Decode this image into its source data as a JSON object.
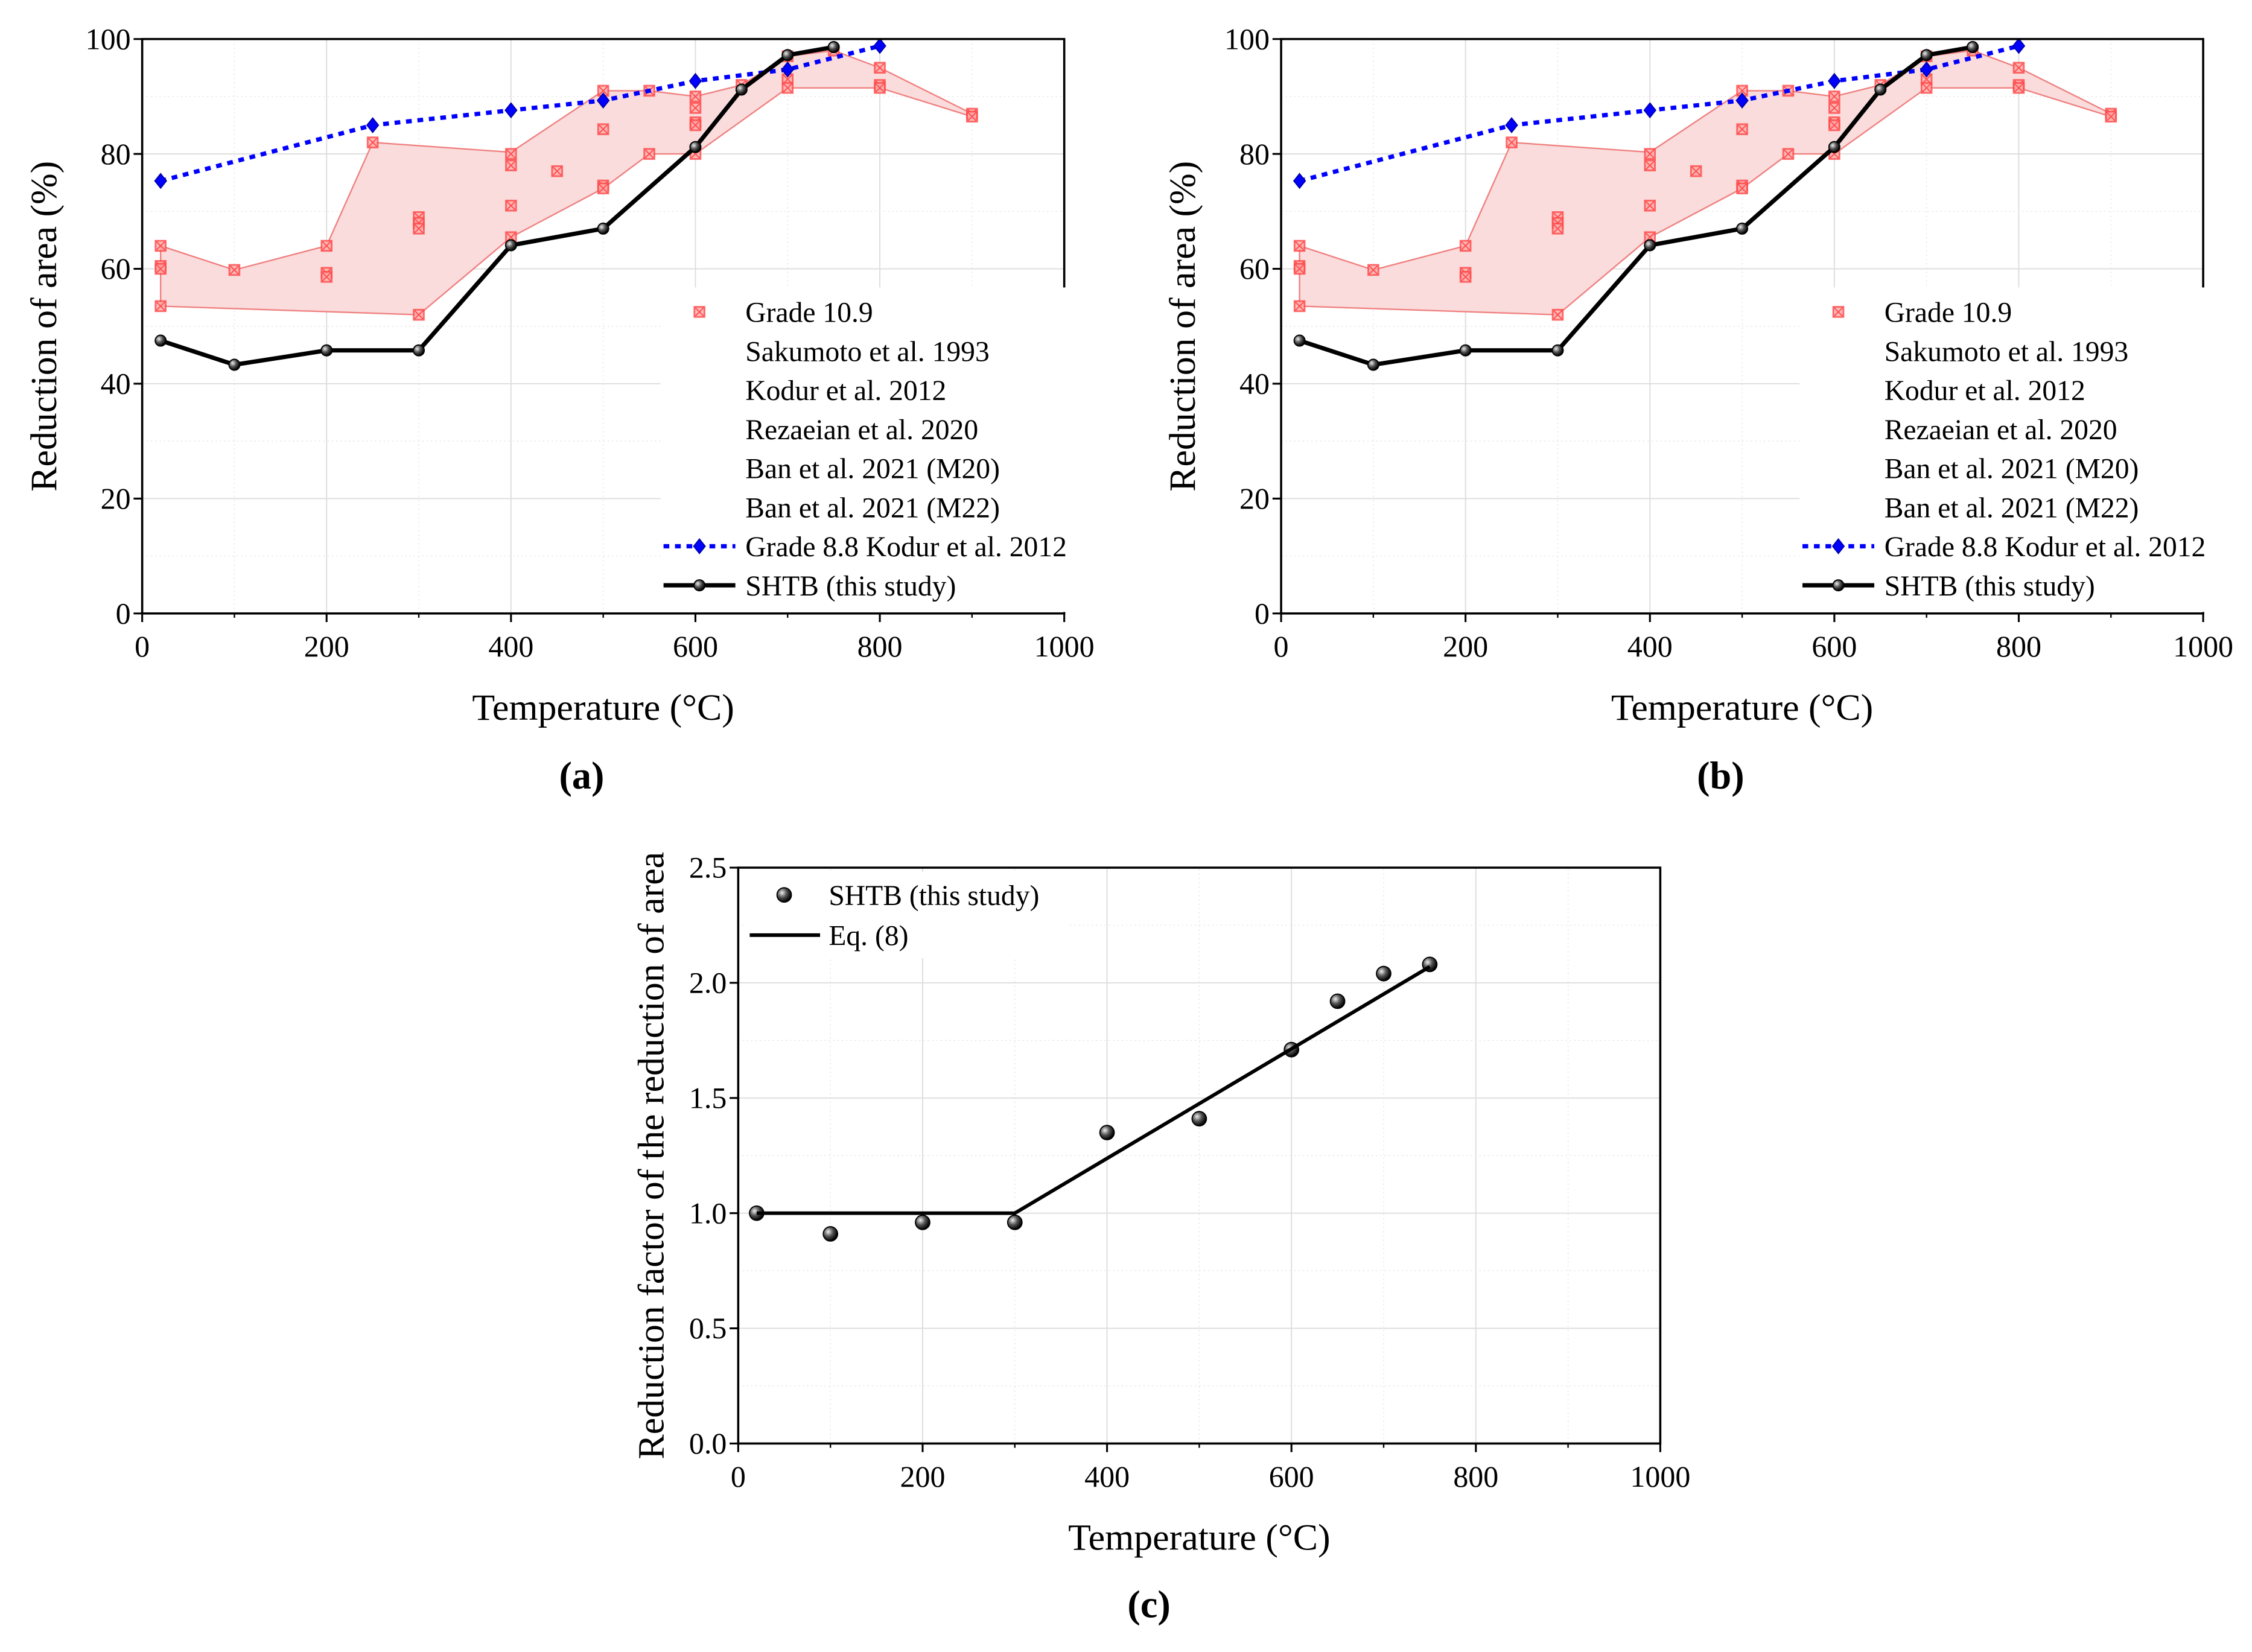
{
  "panel_labels": [
    "(a)",
    "(b)",
    "(c)"
  ],
  "colors": {
    "band_fill": "#fadcdc",
    "band_line": "#f08080",
    "grade109": "#ff4d4d",
    "grade88": "#0000ff",
    "shtb": "#000000"
  },
  "chart_data": [
    {
      "id": "a",
      "type": "line",
      "xlabel": "Temperature (°C)",
      "ylabel": "Reduction of area (%)",
      "xlim": [
        0,
        1000
      ],
      "ylim": [
        0,
        100
      ],
      "xticks": [
        0,
        200,
        400,
        600,
        800,
        1000
      ],
      "yticks": [
        0,
        20,
        40,
        60,
        80,
        100
      ],
      "grid": true,
      "legend_position": "bottom-right",
      "legend": [
        "Grade 10.9",
        "Sakumoto et al. 1993",
        "Kodur et al. 2012",
        "Rezaeian et al. 2020",
        "Ban et al. 2021 (M20)",
        "Ban et al. 2021 (M22)",
        "Grade 8.8 Kodur et al. 2012",
        "SHTB (this study)"
      ],
      "band_upper": {
        "x": [
          20,
          100,
          200,
          250,
          400,
          500,
          550,
          600,
          650,
          700,
          750,
          800,
          900
        ],
        "y": [
          64,
          59.8,
          64,
          82,
          80.3,
          91,
          91,
          90,
          92,
          97,
          98,
          95,
          87
        ]
      },
      "band_lower": {
        "x": [
          20,
          300,
          400,
          500,
          550,
          600,
          700,
          800,
          900
        ],
        "y": [
          53.5,
          52,
          65.5,
          74,
          80,
          80,
          91.5,
          91.5,
          86.5
        ]
      },
      "series": [
        {
          "name": "Grade 10.9",
          "kind": "scatter",
          "x": [
            20,
            20,
            20,
            20,
            100,
            200,
            200,
            200,
            250,
            300,
            300,
            300,
            300,
            400,
            400,
            400,
            400,
            450,
            500,
            500,
            500,
            500,
            550,
            550,
            600,
            600,
            600,
            600,
            600,
            650,
            700,
            700,
            700,
            750,
            800,
            800,
            800,
            900,
            900
          ],
          "y": [
            64,
            60.5,
            60,
            53.5,
            59.8,
            64,
            59.3,
            58.6,
            82,
            69,
            68,
            67,
            52,
            80,
            78,
            71,
            65.5,
            77,
            91,
            84.3,
            74.5,
            74,
            91,
            80,
            90,
            88,
            85.5,
            85,
            80,
            92,
            97,
            93,
            91.5,
            98,
            95,
            92,
            91.5,
            87,
            86.5
          ]
        },
        {
          "name": "Grade 8.8 Kodur et al. 2012",
          "kind": "dotted-line",
          "x": [
            20,
            250,
            400,
            500,
            600,
            700,
            800
          ],
          "y": [
            75.3,
            85,
            87.6,
            89.3,
            92.7,
            94.7,
            98.8
          ]
        },
        {
          "name": "SHTB (this study)",
          "kind": "line",
          "x": [
            20,
            100,
            200,
            300,
            400,
            500,
            600,
            650,
            700,
            750
          ],
          "y": [
            47.5,
            43.3,
            45.8,
            45.8,
            64.1,
            67,
            81.2,
            91.2,
            97.2,
            98.6
          ]
        }
      ]
    },
    {
      "id": "b",
      "type": "line",
      "xlabel": "Temperature (°C)",
      "ylabel": "Reduction of area (%)",
      "xlim": [
        0,
        1000
      ],
      "ylim": [
        0,
        100
      ],
      "xticks": [
        0,
        200,
        400,
        600,
        800,
        1000
      ],
      "yticks": [
        0,
        20,
        40,
        60,
        80,
        100
      ],
      "grid": true,
      "legend_position": "bottom-right",
      "legend": [
        "Grade 10.9",
        "Sakumoto et al. 1993",
        "Kodur et al. 2012",
        "Rezaeian et al. 2020",
        "Ban et al. 2021 (M20)",
        "Ban et al. 2021 (M22)",
        "Grade 8.8 Kodur et al. 2012",
        "SHTB (this study)"
      ],
      "band_upper": {
        "x": [
          20,
          100,
          200,
          250,
          400,
          500,
          550,
          600,
          650,
          700,
          750,
          800,
          900
        ],
        "y": [
          64,
          59.8,
          64,
          82,
          80.3,
          91,
          91,
          90,
          92,
          97,
          98,
          95,
          87
        ]
      },
      "band_lower": {
        "x": [
          20,
          300,
          400,
          500,
          550,
          600,
          700,
          800,
          900
        ],
        "y": [
          53.5,
          52,
          65.5,
          74,
          80,
          80,
          91.5,
          91.5,
          86.5
        ]
      },
      "series": [
        {
          "name": "Grade 10.9",
          "kind": "scatter",
          "x": [
            20,
            20,
            20,
            20,
            100,
            200,
            200,
            200,
            250,
            300,
            300,
            300,
            300,
            400,
            400,
            400,
            400,
            450,
            500,
            500,
            500,
            500,
            550,
            550,
            600,
            600,
            600,
            600,
            600,
            650,
            700,
            700,
            700,
            750,
            800,
            800,
            800,
            900,
            900
          ],
          "y": [
            64,
            60.5,
            60,
            53.5,
            59.8,
            64,
            59.3,
            58.6,
            82,
            69,
            68,
            67,
            52,
            80,
            78,
            71,
            65.5,
            77,
            91,
            84.3,
            74.5,
            74,
            91,
            80,
            90,
            88,
            85.5,
            85,
            80,
            92,
            97,
            93,
            91.5,
            98,
            95,
            92,
            91.5,
            87,
            86.5
          ]
        },
        {
          "name": "Grade 8.8 Kodur et al. 2012",
          "kind": "dotted-line",
          "x": [
            20,
            250,
            400,
            500,
            600,
            700,
            800
          ],
          "y": [
            75.3,
            85,
            87.6,
            89.3,
            92.7,
            94.7,
            98.8
          ]
        },
        {
          "name": "SHTB (this study)",
          "kind": "line",
          "x": [
            20,
            100,
            200,
            300,
            400,
            500,
            600,
            650,
            700,
            750
          ],
          "y": [
            47.5,
            43.3,
            45.8,
            45.8,
            64.1,
            67,
            81.2,
            91.2,
            97.2,
            98.6
          ]
        }
      ]
    },
    {
      "id": "c",
      "type": "scatter",
      "xlabel": "Temperature (°C)",
      "ylabel": "Reduction factor of the reduction of area",
      "xlim": [
        0,
        1000
      ],
      "ylim": [
        0,
        2.5
      ],
      "xticks": [
        0,
        200,
        400,
        600,
        800,
        1000
      ],
      "yticks": [
        "0.0",
        "0.5",
        "1.0",
        "1.5",
        "2.0",
        "2.5"
      ],
      "grid": true,
      "legend_position": "top-left",
      "legend": [
        "SHTB (this study)",
        "Eq. (8)"
      ],
      "series": [
        {
          "name": "SHTB (this study)",
          "kind": "scatter-ball",
          "x": [
            20,
            100,
            200,
            300,
            400,
            500,
            600,
            650,
            700,
            750
          ],
          "y": [
            1.0,
            0.91,
            0.96,
            0.96,
            1.35,
            1.41,
            1.71,
            1.92,
            2.04,
            2.08
          ]
        },
        {
          "name": "Eq. (8)",
          "kind": "line",
          "x": [
            20,
            300,
            750
          ],
          "y": [
            1.0,
            1.0,
            2.07
          ]
        }
      ]
    }
  ]
}
